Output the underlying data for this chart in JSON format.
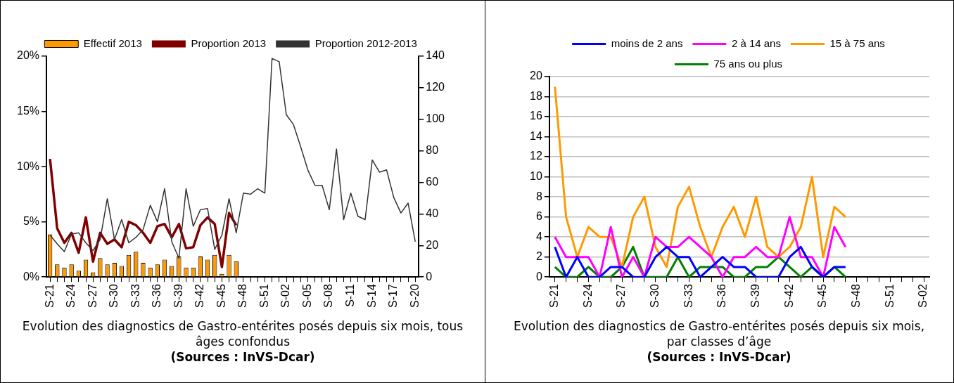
{
  "chart_data": [
    {
      "type": "bar",
      "title": "Evolution des diagnostics de Gastro-entérites posés depuis six mois, tous âges confondus",
      "annotations": [
        "(Sources : InVS-Dcar)"
      ],
      "categories": [
        "S-21",
        null,
        null,
        "S-24",
        null,
        null,
        "S-27",
        null,
        null,
        "S-30",
        null,
        null,
        "S-33",
        null,
        null,
        "S-36",
        null,
        null,
        "S-39",
        null,
        null,
        "S-42",
        null,
        null,
        "S-45",
        null,
        null,
        "S-48",
        null,
        null,
        "S-51",
        null,
        null,
        "S-02",
        null,
        null,
        "S-05",
        null,
        null,
        "S-08",
        null,
        null,
        "S-11",
        null,
        null,
        "S-14",
        null,
        null,
        "S-17",
        null,
        null,
        "S-20"
      ],
      "series": [
        {
          "name": "Effectif 2013",
          "type": "bar",
          "axis": "y2",
          "color": "#ff9900",
          "values": [
            27,
            8,
            6,
            8,
            4,
            11,
            3,
            12,
            8,
            9,
            7,
            14,
            16,
            9,
            6,
            8,
            11,
            7,
            13,
            6,
            6,
            13,
            11,
            14,
            2,
            14,
            10,
            null,
            null,
            null,
            null,
            null,
            null,
            null,
            null,
            null,
            null,
            null,
            null,
            null,
            null,
            null,
            null,
            null,
            null,
            null,
            null,
            null,
            null,
            null,
            null,
            null
          ]
        },
        {
          "name": "Proportion 2013",
          "type": "line",
          "axis": "y",
          "color": "#800000",
          "values": [
            10.7,
            4.4,
            3.1,
            4.0,
            2.2,
            5.4,
            1.4,
            4.0,
            3.0,
            3.4,
            2.7,
            5.0,
            4.7,
            4.0,
            3.1,
            4.6,
            4.8,
            3.6,
            4.8,
            2.6,
            2.7,
            4.7,
            5.4,
            4.8,
            0.9,
            5.8,
            4.7,
            null,
            null,
            null,
            null,
            null,
            null,
            null,
            null,
            null,
            null,
            null,
            null,
            null,
            null,
            null,
            null,
            null,
            null,
            null,
            null,
            null,
            null,
            null,
            null,
            null
          ]
        },
        {
          "name": "Proportion 2012-2013",
          "type": "line",
          "axis": "y",
          "color": "#333333",
          "values": [
            3.8,
            3.0,
            2.3,
            3.9,
            4.0,
            3.1,
            2.4,
            3.4,
            7.1,
            3.4,
            5.2,
            3.1,
            3.6,
            4.3,
            6.5,
            5.0,
            8.0,
            3.2,
            1.7,
            8.0,
            4.6,
            6.1,
            6.2,
            2.5,
            3.8,
            7.1,
            4.0,
            7.6,
            7.5,
            8.0,
            7.6,
            19.8,
            19.5,
            14.7,
            13.8,
            11.8,
            9.7,
            8.3,
            8.3,
            6.1,
            11.6,
            5.2,
            7.6,
            5.5,
            5.2,
            10.6,
            9.5,
            9.7,
            7.2,
            5.8,
            6.7,
            3.2
          ]
        }
      ],
      "ylim": [
        0,
        20
      ],
      "yticks": [
        {
          "value": 0,
          "label": "0%"
        },
        {
          "value": 5,
          "label": "5%"
        },
        {
          "value": 10,
          "label": "10%"
        },
        {
          "value": 15,
          "label": "15%"
        },
        {
          "value": 20,
          "label": "20%"
        }
      ],
      "y2lim": [
        0,
        140
      ],
      "y2ticks": [
        0,
        20,
        40,
        60,
        80,
        100,
        120,
        140
      ],
      "legend": "top",
      "marker": "none"
    },
    {
      "type": "line",
      "title": "Evolution des diagnostics de Gastro-entérites posés depuis six mois, par classes d’âge",
      "annotations": [
        "(Sources : InVS-Dcar)"
      ],
      "categories": [
        "S-21",
        null,
        null,
        "S-24",
        null,
        null,
        "S-27",
        null,
        null,
        "S-30",
        null,
        null,
        "S-33",
        null,
        null,
        "S-36",
        null,
        null,
        "S-39",
        null,
        null,
        "S-42",
        null,
        null,
        "S-45",
        null,
        null,
        "S-48",
        null,
        null,
        "S-51",
        null,
        null,
        "S-02"
      ],
      "series": [
        {
          "name": "moins de 2 ans",
          "color": "#0000ff",
          "values": [
            3,
            0,
            2,
            0,
            0,
            1,
            1,
            0,
            0,
            2,
            3,
            2,
            2,
            0,
            1,
            2,
            1,
            1,
            0,
            0,
            0,
            2,
            3,
            1,
            0,
            1,
            1,
            null,
            null,
            null,
            null,
            null,
            null,
            null
          ]
        },
        {
          "name": "2 à 14 ans",
          "color": "#ff00ff",
          "values": [
            4,
            2,
            2,
            2,
            0,
            5,
            0,
            2,
            0,
            4,
            3,
            3,
            4,
            3,
            2,
            0,
            2,
            2,
            3,
            2,
            2,
            6,
            2,
            2,
            0,
            5,
            3,
            null,
            null,
            null,
            null,
            null,
            null,
            null
          ]
        },
        {
          "name": "15 à 75 ans",
          "color": "#ff9900",
          "values": [
            19,
            6,
            2,
            5,
            4,
            4,
            1,
            6,
            8,
            3,
            1,
            7,
            9,
            5,
            2,
            5,
            7,
            4,
            8,
            3,
            2,
            3,
            5,
            10,
            2,
            7,
            6,
            null,
            null,
            null,
            null,
            null,
            null,
            null
          ]
        },
        {
          "name": "75 ans ou plus",
          "color": "#008000",
          "values": [
            1,
            0,
            0,
            1,
            0,
            0,
            1,
            3,
            0,
            0,
            0,
            2,
            0,
            1,
            1,
            1,
            0,
            0,
            1,
            1,
            2,
            1,
            0,
            1,
            0,
            1,
            0,
            null,
            null,
            null,
            null,
            null,
            null,
            null
          ]
        }
      ],
      "ylim": [
        0,
        20
      ],
      "yticks": [
        0,
        2,
        4,
        6,
        8,
        10,
        12,
        14,
        16,
        18,
        20
      ],
      "grid": "y",
      "legend": "top",
      "marker": "none"
    }
  ]
}
